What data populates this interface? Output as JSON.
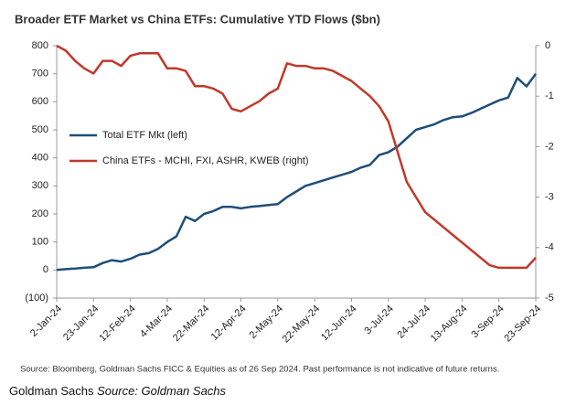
{
  "chart_data": {
    "type": "line",
    "title": "Broader ETF Market vs China ETFs: Cumulative YTD Flows ($bn)",
    "categories": [
      "2-Jan-24",
      null,
      null,
      null,
      "23-Jan-24",
      null,
      null,
      null,
      "12-Feb-24",
      null,
      null,
      null,
      "4-Mar-24",
      null,
      null,
      null,
      "22-Mar-24",
      null,
      null,
      null,
      "12-Apr-24",
      null,
      null,
      null,
      "2-May-24",
      null,
      null,
      null,
      "22-May-24",
      null,
      null,
      null,
      "12-Jun-24",
      null,
      null,
      null,
      "3-Jul-24",
      null,
      null,
      null,
      "24-Jul-24",
      null,
      null,
      null,
      "13-Aug-24",
      null,
      null,
      null,
      "3-Sep-24",
      null,
      null,
      null,
      "23-Sep-24"
    ],
    "series": [
      {
        "name": "Total ETF Mkt (left)",
        "color": "#1f4e79",
        "axis": "y",
        "values": [
          0,
          3,
          5,
          8,
          10,
          25,
          35,
          30,
          40,
          55,
          60,
          75,
          100,
          120,
          190,
          175,
          200,
          210,
          225,
          225,
          220,
          225,
          228,
          232,
          235,
          260,
          280,
          300,
          310,
          320,
          330,
          340,
          350,
          365,
          375,
          410,
          420,
          440,
          470,
          500,
          510,
          520,
          535,
          545,
          548,
          560,
          575,
          590,
          605,
          615,
          685,
          655,
          700
        ]
      },
      {
        "name": "China ETFs - MCHI, FXI, ASHR, KWEB (right)",
        "color": "#c0392b",
        "axis": "y2",
        "values": [
          0,
          -0.1,
          -0.3,
          -0.45,
          -0.55,
          -0.3,
          -0.3,
          -0.4,
          -0.2,
          -0.15,
          -0.15,
          -0.15,
          -0.45,
          -0.45,
          -0.5,
          -0.8,
          -0.8,
          -0.85,
          -0.95,
          -1.25,
          -1.3,
          -1.2,
          -1.1,
          -0.95,
          -0.85,
          -0.35,
          -0.4,
          -0.4,
          -0.45,
          -0.45,
          -0.5,
          -0.6,
          -0.7,
          -0.85,
          -1.0,
          -1.2,
          -1.5,
          -2.1,
          -2.7,
          -3.0,
          -3.3,
          -3.45,
          -3.6,
          -3.75,
          -3.9,
          -4.05,
          -4.2,
          -4.35,
          -4.4,
          -4.4,
          -4.4,
          -4.4,
          -4.2
        ]
      }
    ],
    "ylim": [
      -100,
      800
    ],
    "yticks": [
      {
        "value": -100,
        "label": "(100)"
      },
      0,
      100,
      200,
      300,
      400,
      500,
      600,
      700,
      800
    ],
    "y2lim": [
      -5,
      0
    ],
    "y2ticks": [
      -5,
      -4,
      -3,
      -2,
      -1,
      0
    ],
    "legend": "left",
    "grid": false,
    "source": "Source: Bloomberg, Goldman Sachs FICC & Equities as of 26 Sep 2024. Past performance is not indicative of future returns.",
    "caption_name": "Goldman Sachs",
    "caption_source": "Source: Goldman Sachs"
  }
}
